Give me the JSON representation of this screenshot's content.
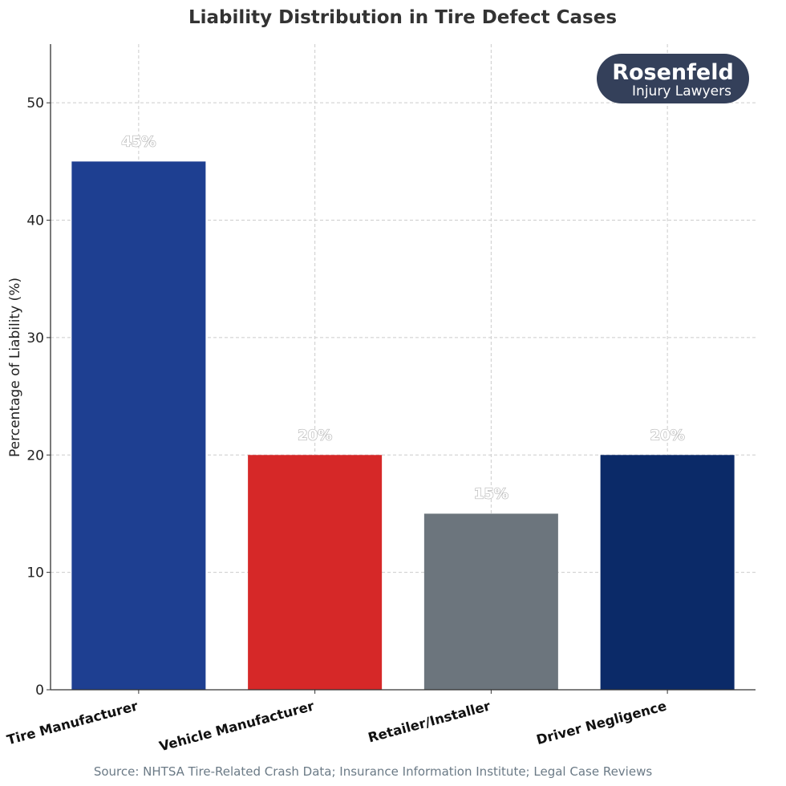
{
  "chart_data": {
    "type": "bar",
    "title": "Liability Distribution in Tire Defect Cases",
    "ylabel": "Percentage of Liability (%)",
    "xlabel": "",
    "categories": [
      "Tire Manufacturer",
      "Vehicle Manufacturer",
      "Retailer/Installer",
      "Driver Negligence"
    ],
    "values": [
      45,
      20,
      15,
      20
    ],
    "data_labels": [
      "45%",
      "20%",
      "15%",
      "20%"
    ],
    "colors": [
      "#1e3f91",
      "#d62828",
      "#6c757d",
      "#0b2a68"
    ],
    "ylim": [
      0,
      55
    ],
    "yticks": [
      0,
      10,
      20,
      30,
      40,
      50
    ],
    "grid": true,
    "source": "Source: NHTSA Tire-Related Crash Data; Insurance Information Institute; Legal Case Reviews"
  },
  "logo": {
    "line1": "Rosenfeld",
    "line2": "Injury Lawyers",
    "color": "#34405a"
  }
}
